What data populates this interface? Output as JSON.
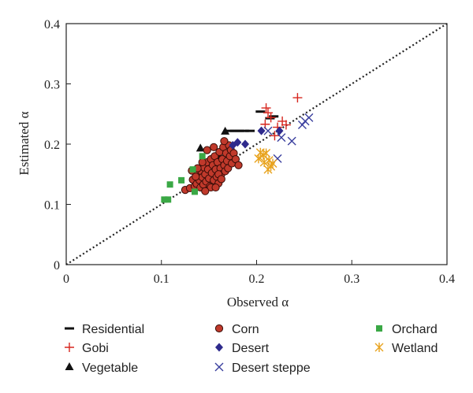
{
  "chart_data": {
    "type": "scatter",
    "xlabel": "Observed α",
    "ylabel": "Estimated α",
    "xlim": [
      0,
      0.4
    ],
    "ylim": [
      0,
      0.4
    ],
    "x_ticks": [
      "0",
      "0.1",
      "0.2",
      "0.3",
      "0.4"
    ],
    "y_ticks": [
      "0",
      "0.1",
      "0.2",
      "0.3",
      "0.4"
    ],
    "legend_placement": "bottom",
    "reference_line": {
      "style": "dotted",
      "from": [
        0,
        0
      ],
      "to": [
        0.4,
        0.4
      ]
    },
    "series": [
      {
        "name": "Residential",
        "marker": "dash",
        "color": "#111111",
        "points": [
          [
            0.172,
            0.222
          ],
          [
            0.177,
            0.222
          ],
          [
            0.182,
            0.222
          ],
          [
            0.187,
            0.222
          ],
          [
            0.193,
            0.222
          ],
          [
            0.204,
            0.254
          ],
          [
            0.214,
            0.243
          ],
          [
            0.218,
            0.246
          ]
        ]
      },
      {
        "name": "Gobi",
        "marker": "plus",
        "color": "#d7261e",
        "points": [
          [
            0.21,
            0.26
          ],
          [
            0.212,
            0.252
          ],
          [
            0.215,
            0.244
          ],
          [
            0.209,
            0.233
          ],
          [
            0.222,
            0.228
          ],
          [
            0.227,
            0.238
          ],
          [
            0.231,
            0.232
          ],
          [
            0.219,
            0.214
          ],
          [
            0.243,
            0.277
          ]
        ]
      },
      {
        "name": "Vegetable",
        "marker": "triangle",
        "color": "#111111",
        "points": [
          [
            0.141,
            0.193
          ],
          [
            0.167,
            0.221
          ],
          [
            0.16,
            0.181
          ]
        ]
      },
      {
        "name": "Corn",
        "marker": "circle",
        "color": "#c0392b",
        "points": [
          [
            0.125,
            0.124
          ],
          [
            0.13,
            0.127
          ],
          [
            0.133,
            0.141
          ],
          [
            0.135,
            0.13
          ],
          [
            0.137,
            0.134
          ],
          [
            0.138,
            0.15
          ],
          [
            0.14,
            0.14
          ],
          [
            0.141,
            0.128
          ],
          [
            0.142,
            0.155
          ],
          [
            0.143,
            0.145
          ],
          [
            0.144,
            0.133
          ],
          [
            0.145,
            0.161
          ],
          [
            0.146,
            0.15
          ],
          [
            0.147,
            0.138
          ],
          [
            0.148,
            0.17
          ],
          [
            0.149,
            0.158
          ],
          [
            0.15,
            0.143
          ],
          [
            0.151,
            0.13
          ],
          [
            0.152,
            0.175
          ],
          [
            0.153,
            0.152
          ],
          [
            0.154,
            0.165
          ],
          [
            0.155,
            0.14
          ],
          [
            0.156,
            0.18
          ],
          [
            0.157,
            0.158
          ],
          [
            0.158,
            0.146
          ],
          [
            0.159,
            0.17
          ],
          [
            0.16,
            0.135
          ],
          [
            0.161,
            0.187
          ],
          [
            0.162,
            0.16
          ],
          [
            0.163,
            0.15
          ],
          [
            0.164,
            0.175
          ],
          [
            0.165,
            0.195
          ],
          [
            0.166,
            0.165
          ],
          [
            0.167,
            0.155
          ],
          [
            0.168,
            0.185
          ],
          [
            0.169,
            0.172
          ],
          [
            0.17,
            0.16
          ],
          [
            0.171,
            0.198
          ],
          [
            0.172,
            0.18
          ],
          [
            0.173,
            0.19
          ],
          [
            0.174,
            0.168
          ],
          [
            0.176,
            0.185
          ],
          [
            0.178,
            0.175
          ],
          [
            0.148,
            0.19
          ],
          [
            0.155,
            0.195
          ],
          [
            0.143,
            0.17
          ],
          [
            0.138,
            0.16
          ],
          [
            0.152,
            0.128
          ],
          [
            0.16,
            0.15
          ],
          [
            0.166,
            0.205
          ],
          [
            0.181,
            0.165
          ],
          [
            0.163,
            0.142
          ],
          [
            0.157,
            0.128
          ],
          [
            0.146,
            0.122
          ],
          [
            0.136,
            0.146
          ],
          [
            0.132,
            0.156
          ]
        ]
      },
      {
        "name": "Desert",
        "marker": "diamond",
        "color": "#2e2a8c",
        "points": [
          [
            0.175,
            0.198
          ],
          [
            0.18,
            0.203
          ],
          [
            0.188,
            0.2
          ],
          [
            0.205,
            0.222
          ],
          [
            0.224,
            0.222
          ]
        ]
      },
      {
        "name": "Desert steppe",
        "marker": "x",
        "color": "#3a3f9e",
        "points": [
          [
            0.212,
            0.222
          ],
          [
            0.222,
            0.176
          ],
          [
            0.226,
            0.211
          ],
          [
            0.237,
            0.205
          ],
          [
            0.248,
            0.232
          ],
          [
            0.251,
            0.238
          ],
          [
            0.255,
            0.244
          ]
        ]
      },
      {
        "name": "Orchard",
        "marker": "square",
        "color": "#3aa845",
        "points": [
          [
            0.103,
            0.108
          ],
          [
            0.107,
            0.108
          ],
          [
            0.109,
            0.133
          ],
          [
            0.121,
            0.14
          ],
          [
            0.133,
            0.158
          ],
          [
            0.135,
            0.121
          ],
          [
            0.143,
            0.18
          ]
        ]
      },
      {
        "name": "Wetland",
        "marker": "asterisk",
        "color": "#e8a31e",
        "points": [
          [
            0.202,
            0.176
          ],
          [
            0.204,
            0.186
          ],
          [
            0.207,
            0.182
          ],
          [
            0.21,
            0.185
          ],
          [
            0.208,
            0.17
          ],
          [
            0.213,
            0.173
          ],
          [
            0.215,
            0.163
          ],
          [
            0.217,
            0.168
          ],
          [
            0.212,
            0.158
          ]
        ]
      }
    ]
  }
}
